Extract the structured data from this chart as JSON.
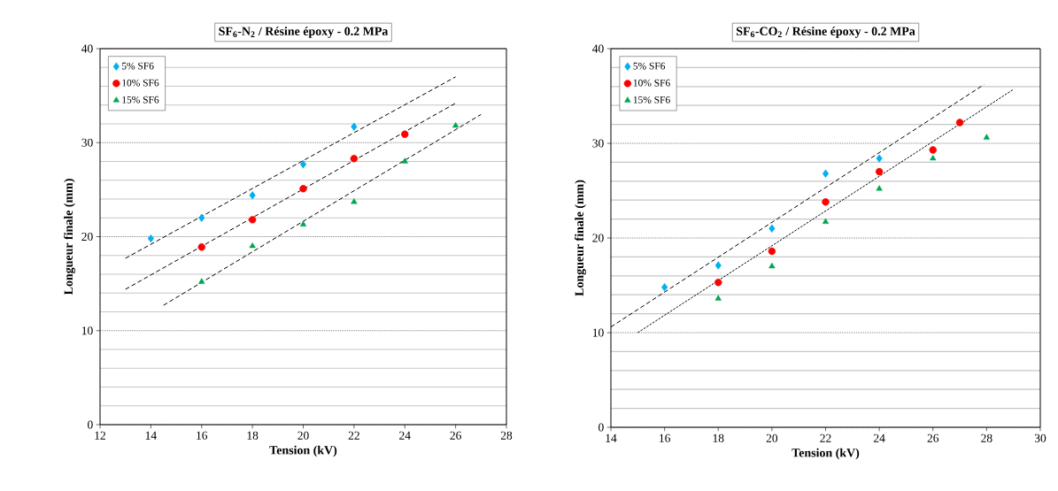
{
  "chart_data": [
    {
      "type": "scatter",
      "title": "SF$_{6}$-N$_{2}$ / Résine époxy - 0.2 MPa",
      "xlabel": "Tension (kV)",
      "ylabel": "Longueur finale (mm)",
      "xlim": [
        12,
        28
      ],
      "xticks": [
        12,
        14,
        16,
        18,
        20,
        22,
        24,
        26,
        28
      ],
      "ylim": [
        0,
        40
      ],
      "yticks": [
        0,
        10,
        20,
        30,
        40
      ],
      "grid": "y",
      "legend": "top left",
      "series": [
        {
          "name": "5% SF6",
          "color": "#00b0f0",
          "marker": "diamond",
          "x": [
            14,
            16,
            18,
            20,
            22
          ],
          "values": [
            19.8,
            22.0,
            24.4,
            27.7,
            31.7
          ]
        },
        {
          "name": "10% SF6",
          "color": "#ff0000",
          "marker": "circle",
          "x": [
            16,
            18,
            20,
            22,
            24
          ],
          "values": [
            18.9,
            21.8,
            25.1,
            28.3,
            30.9
          ]
        },
        {
          "name": "15% SF6",
          "color": "#00a650",
          "marker": "triangle",
          "x": [
            16,
            18,
            20,
            22,
            24,
            26
          ],
          "values": [
            15.2,
            19.0,
            21.3,
            23.7,
            28.0,
            31.8
          ]
        },
        {
          "type": "line",
          "color": "#000000",
          "marker": "none",
          "line_style": "dashed",
          "x": [
            13,
            26
          ],
          "values": [
            17.7,
            37.0
          ]
        },
        {
          "type": "line",
          "color": "#000000",
          "marker": "none",
          "line_style": "dashed",
          "x": [
            13,
            26
          ],
          "values": [
            14.4,
            34.2
          ]
        },
        {
          "type": "line",
          "color": "#000000",
          "marker": "none",
          "line_style": "dashed",
          "x": [
            14.5,
            27
          ],
          "values": [
            12.7,
            33.0
          ]
        }
      ]
    },
    {
      "type": "scatter",
      "title": "SF$_{6}$-CO$_{2}$ / Résine époxy - 0.2 MPa",
      "xlabel": "Tension (kV)",
      "ylabel": "Longueur finale (mm)",
      "xlim": [
        14,
        30
      ],
      "xticks": [
        14,
        16,
        18,
        20,
        22,
        24,
        26,
        28,
        30
      ],
      "ylim": [
        0,
        40
      ],
      "yticks": [
        0,
        10,
        20,
        30,
        40
      ],
      "grid": "y",
      "legend": "top left",
      "series": [
        {
          "name": "5% SF6",
          "color": "#00b0f0",
          "marker": "diamond",
          "x": [
            16,
            18,
            20,
            22,
            24
          ],
          "values": [
            14.8,
            17.1,
            21.0,
            26.8,
            28.4
          ]
        },
        {
          "name": "10% SF6",
          "color": "#ff0000",
          "marker": "circle",
          "x": [
            18,
            20,
            22,
            24,
            26,
            27
          ],
          "values": [
            15.3,
            18.6,
            23.8,
            27.0,
            29.3,
            32.2
          ]
        },
        {
          "name": "15% SF6",
          "color": "#00a650",
          "marker": "triangle",
          "x": [
            18,
            20,
            22,
            24,
            26,
            28
          ],
          "values": [
            13.6,
            17.0,
            21.7,
            25.2,
            28.4,
            30.6
          ]
        },
        {
          "type": "line",
          "color": "#000000",
          "marker": "none",
          "line_style": "dashed",
          "x": [
            14,
            27.9
          ],
          "values": [
            10.6,
            36.2
          ]
        },
        {
          "type": "line",
          "color": "#000000",
          "marker": "none",
          "line_style": "dotted",
          "x": [
            15,
            29
          ],
          "values": [
            10.0,
            35.7
          ]
        }
      ]
    }
  ]
}
